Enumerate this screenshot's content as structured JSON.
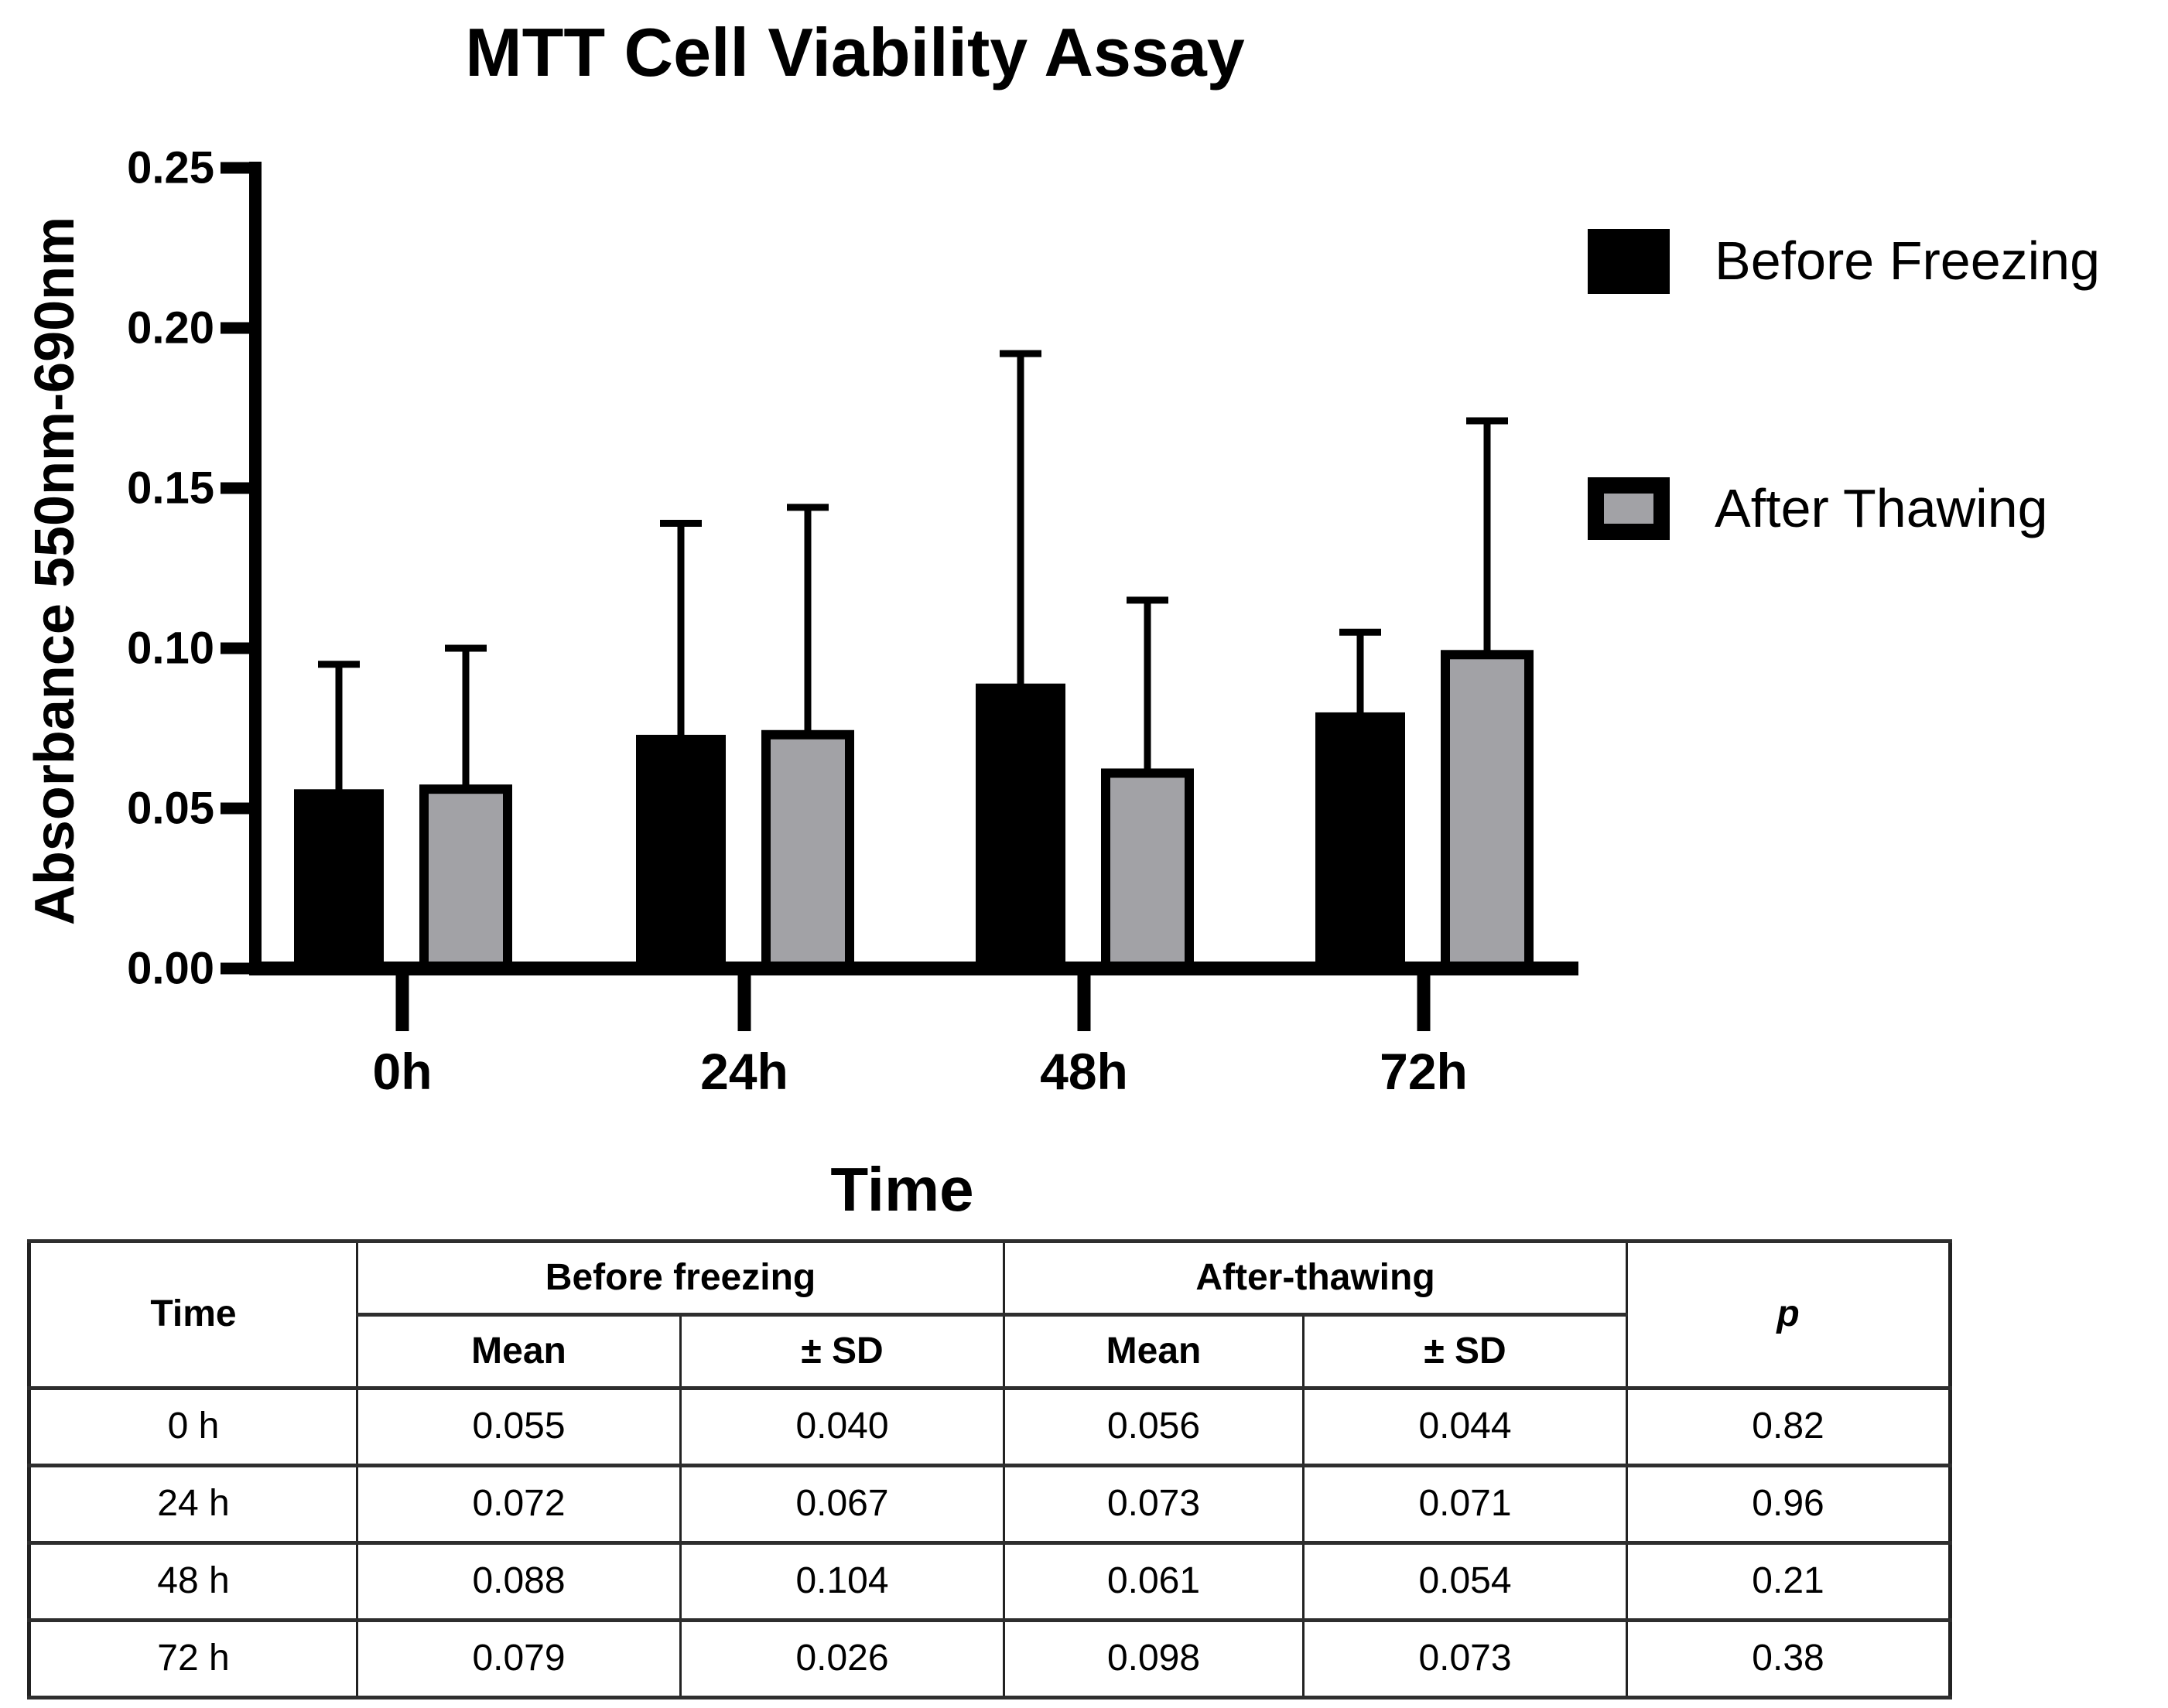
{
  "chart_data": {
    "type": "bar",
    "title": "MTT Cell Viability Assay",
    "xlabel": "Time",
    "ylabel": "Absorbance 550nm-690nm",
    "categories": [
      "0h",
      "24h",
      "48h",
      "72h"
    ],
    "series": [
      {
        "name": "Before Freezing",
        "color": "#000000",
        "values": [
          0.055,
          0.072,
          0.088,
          0.079
        ],
        "sd": [
          0.04,
          0.067,
          0.104,
          0.026
        ]
      },
      {
        "name": "After Thawing",
        "color": "#a2a2a6",
        "values": [
          0.056,
          0.073,
          0.061,
          0.098
        ],
        "sd": [
          0.044,
          0.071,
          0.054,
          0.073
        ]
      }
    ],
    "ylim": [
      0,
      0.25
    ],
    "yticks": [
      "0.00",
      "0.05",
      "0.10",
      "0.15",
      "0.20",
      "0.25"
    ],
    "grid": false,
    "error_bars": "upper SD whiskers with caps",
    "legend_position": "upper-right"
  },
  "table": {
    "time_header": "Time",
    "group_headers": [
      "Before freezing",
      "After-thawing"
    ],
    "sub_headers": [
      "Mean",
      "± SD",
      "Mean",
      "± SD"
    ],
    "p_header": "p",
    "rows": [
      {
        "time": "0 h",
        "bf_mean": "0.055",
        "bf_sd": "0.040",
        "at_mean": "0.056",
        "at_sd": "0.044",
        "p": "0.82"
      },
      {
        "time": "24 h",
        "bf_mean": "0.072",
        "bf_sd": "0.067",
        "at_mean": "0.073",
        "at_sd": "0.071",
        "p": "0.96"
      },
      {
        "time": "48 h",
        "bf_mean": "0.088",
        "bf_sd": "0.104",
        "at_mean": "0.061",
        "at_sd": "0.054",
        "p": "0.21"
      },
      {
        "time": "72 h",
        "bf_mean": "0.079",
        "bf_sd": "0.026",
        "at_mean": "0.098",
        "at_sd": "0.073",
        "p": "0.38"
      }
    ]
  }
}
